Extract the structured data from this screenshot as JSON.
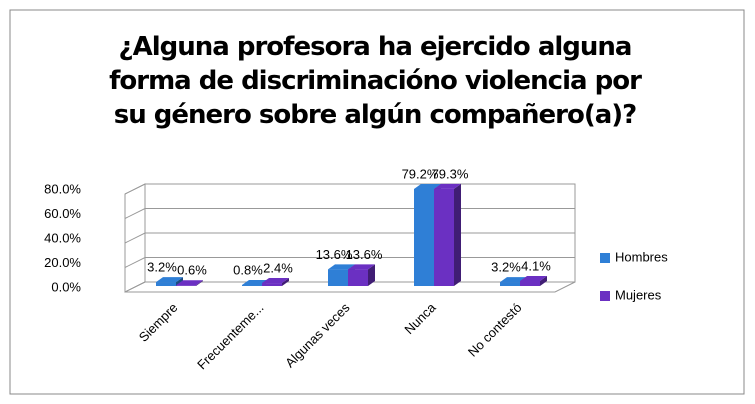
{
  "chart_data": {
    "type": "bar3d",
    "title": "¿Alguna profesora ha ejercido alguna forma de discriminacióno violencia por su género sobre algún compañero(a)?",
    "categories": [
      "Siempre",
      "Frecuenteme...",
      "Algunas veces",
      "Nunca",
      "No contestó"
    ],
    "series": [
      {
        "name": "Hombres",
        "color": "#2f7fd6",
        "values": [
          3.2,
          0.8,
          13.6,
          79.2,
          3.2
        ],
        "value_labels": [
          "3.2%",
          "0.8%",
          "13.6%",
          "79.2%",
          "3.2%"
        ]
      },
      {
        "name": "Mujeres",
        "color": "#6b30c2",
        "values": [
          0.6,
          2.4,
          13.6,
          79.3,
          4.1
        ],
        "value_labels": [
          "0.6%",
          "2.4%",
          "13.6%",
          "79.3%",
          "4.1%"
        ]
      }
    ],
    "ylim": [
      0,
      80
    ],
    "yticks": [
      {
        "value": 0,
        "label": "0.0%"
      },
      {
        "value": 20,
        "label": "20.0%"
      },
      {
        "value": 40,
        "label": "40.0%"
      },
      {
        "value": 60,
        "label": "60.0%"
      },
      {
        "value": 80,
        "label": "80.0%"
      }
    ],
    "grid": true,
    "legend": "right"
  }
}
